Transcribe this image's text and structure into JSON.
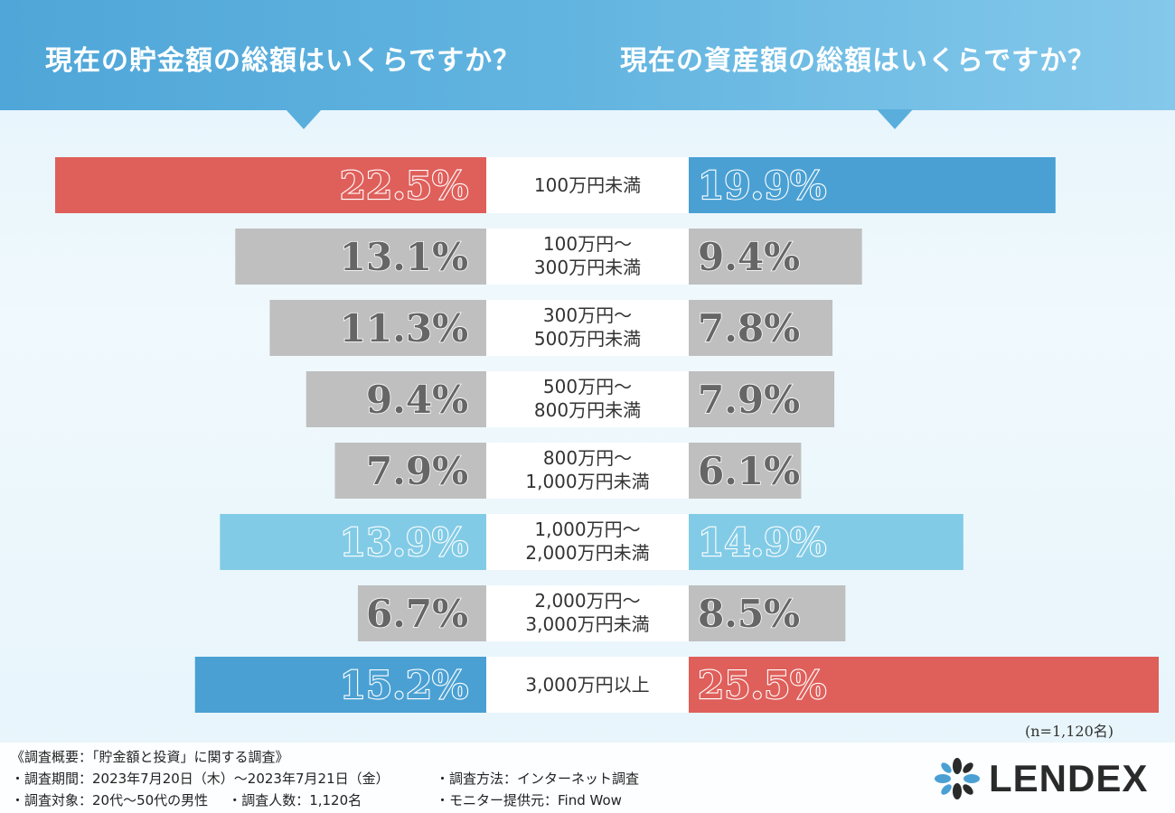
{
  "header": {
    "left_title": "現在の貯金額の総額はいくらですか？",
    "right_title": "現在の資産額の総額はいくらですか？"
  },
  "chart_data": {
    "type": "bar",
    "title_left": "現在の貯金額の総額はいくらですか？",
    "title_right": "現在の資産額の総額はいくらですか？",
    "categories": [
      [
        "100万円未満"
      ],
      [
        "100万円～",
        "300万円未満"
      ],
      [
        "300万円～",
        "500万円未満"
      ],
      [
        "500万円～",
        "800万円未満"
      ],
      [
        "800万円～",
        "1,000万円未満"
      ],
      [
        "1,000万円～",
        "2,000万円未満"
      ],
      [
        "2,000万円～",
        "3,000万円未満"
      ],
      [
        "3,000万円以上"
      ]
    ],
    "series": [
      {
        "name": "貯金額",
        "side": "left",
        "values": [
          22.5,
          13.1,
          11.3,
          9.4,
          7.9,
          13.9,
          6.7,
          15.2
        ],
        "labels": [
          "22.5%",
          "13.1%",
          "11.3%",
          "9.4%",
          "7.9%",
          "13.9%",
          "6.7%",
          "15.2%"
        ],
        "colors": [
          "#df5f5a",
          "#bfbfbf",
          "#bfbfbf",
          "#bfbfbf",
          "#bfbfbf",
          "#82cbe6",
          "#bfbfbf",
          "#4aa0d3"
        ]
      },
      {
        "name": "資産額",
        "side": "right",
        "values": [
          19.9,
          9.4,
          7.8,
          7.9,
          6.1,
          14.9,
          8.5,
          25.5
        ],
        "labels": [
          "19.9%",
          "9.4%",
          "7.8%",
          "7.9%",
          "6.1%",
          "14.9%",
          "8.5%",
          "25.5%"
        ],
        "colors": [
          "#4aa0d3",
          "#bfbfbf",
          "#bfbfbf",
          "#bfbfbf",
          "#bfbfbf",
          "#82cbe6",
          "#bfbfbf",
          "#df5f5a"
        ]
      }
    ],
    "xlim": [
      0,
      25.5
    ],
    "sample_note": "(n=1,120名)"
  },
  "footer": {
    "survey_title": "《調査概要：「貯金額と投資」に関する調査》",
    "period": "・調査期間：2023年7月20日（木）～2023年7月21日（金）",
    "method": "・調査方法：インターネット調査",
    "target": "・調査対象：20代～50代の男性",
    "respondents": "・調査人数：1,120名",
    "provider": "・モニター提供元：Find Wow"
  },
  "logo": {
    "text": "LENDEX"
  }
}
